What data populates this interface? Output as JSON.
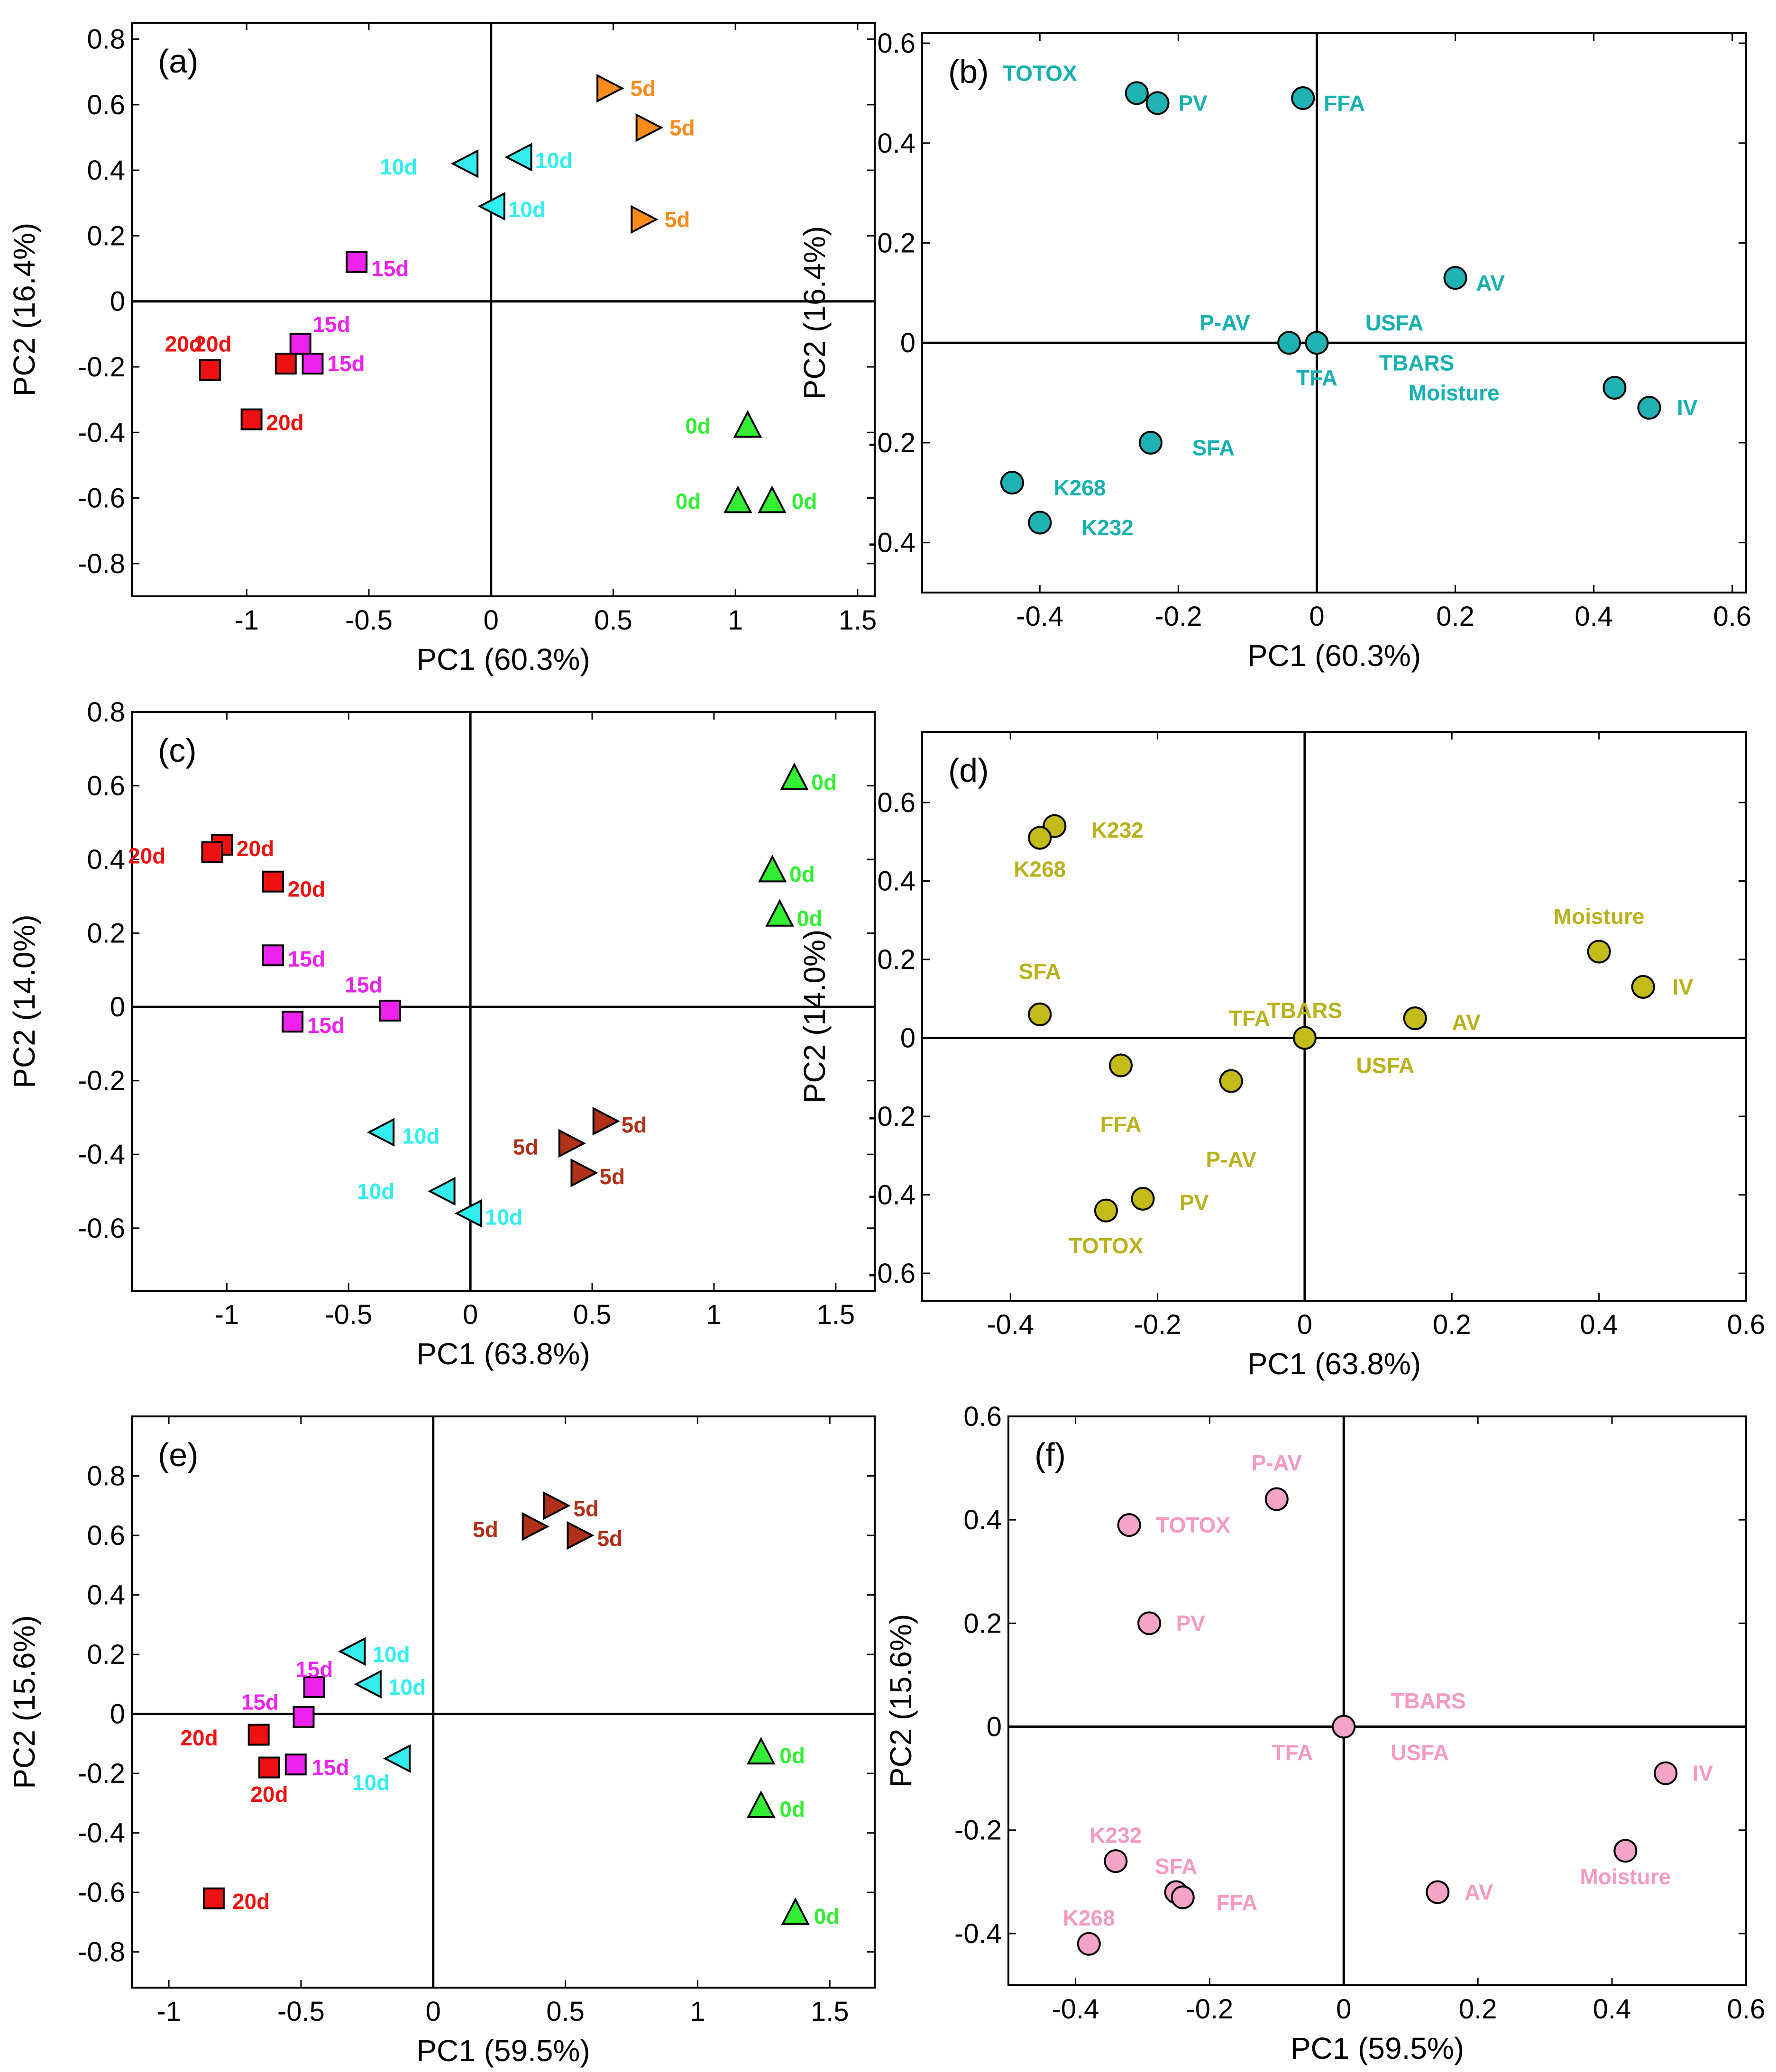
{
  "figure": {
    "title": ""
  },
  "colors": {
    "0d": "#33ee33",
    "5d_a": "#ff8c1a",
    "5d_brown": "#b0301a",
    "10d": "#33eeee",
    "15d": "#ee22ee",
    "20d": "#ee1111",
    "loading_b": "#1fb2b2",
    "loading_b_text": "#16b0b0",
    "loading_d": "#c2bb1a",
    "loading_d_text": "#b8b21e",
    "loading_f": "#f5a3c7",
    "loading_f_text": "#f59ac0"
  },
  "chart_data": [
    {
      "id": "a",
      "panel_label": "(a)",
      "type": "scatter",
      "title": "",
      "xlabel": "PC1 (60.3%)",
      "ylabel": "PC2 (16.4%)",
      "xlim": [
        -1.47,
        1.57
      ],
      "ylim": [
        -0.9,
        0.85
      ],
      "xticks": [
        -1,
        -0.5,
        0,
        0.5,
        1,
        1.5
      ],
      "yticks": [
        -0.8,
        -0.6,
        -0.4,
        -0.2,
        0,
        0.2,
        0.4,
        0.6,
        0.8
      ],
      "points": [
        {
          "x": 0.48,
          "y": 0.65,
          "marker": "tri-right",
          "color": "5d_a",
          "label": "5d",
          "lx": 0.09,
          "ly": 0.0
        },
        {
          "x": 0.64,
          "y": 0.53,
          "marker": "tri-right",
          "color": "5d_a",
          "label": "5d",
          "lx": 0.09,
          "ly": 0.0
        },
        {
          "x": 0.62,
          "y": 0.25,
          "marker": "tri-right",
          "color": "5d_a",
          "label": "5d",
          "lx": 0.09,
          "ly": 0.0
        },
        {
          "x": 0.12,
          "y": 0.44,
          "marker": "tri-left",
          "color": "10d",
          "label": "10d",
          "lx": 0.06,
          "ly": -0.01
        },
        {
          "x": -0.1,
          "y": 0.42,
          "marker": "tri-left",
          "color": "10d",
          "label": "10d",
          "lx": -0.24,
          "ly": -0.01
        },
        {
          "x": 0.01,
          "y": 0.29,
          "marker": "tri-left",
          "color": "10d",
          "label": "10d",
          "lx": 0.06,
          "ly": -0.01
        },
        {
          "x": -0.55,
          "y": 0.12,
          "marker": "square",
          "color": "15d",
          "label": "15d",
          "lx": 0.06,
          "ly": -0.02
        },
        {
          "x": -0.78,
          "y": -0.13,
          "marker": "square",
          "color": "15d",
          "label": "15d",
          "lx": 0.05,
          "ly": 0.06
        },
        {
          "x": -0.73,
          "y": -0.19,
          "marker": "square",
          "color": "15d",
          "label": "15d",
          "lx": 0.06,
          "ly": 0.0
        },
        {
          "x": -0.84,
          "y": -0.19,
          "marker": "square",
          "color": "20d",
          "label": "20d",
          "lx": -0.26,
          "ly": 0.06
        },
        {
          "x": -1.15,
          "y": -0.21,
          "marker": "square",
          "color": "20d",
          "label": "20d",
          "lx": -0.07,
          "ly": 0.08
        },
        {
          "x": -0.98,
          "y": -0.36,
          "marker": "square",
          "color": "20d",
          "label": "20d",
          "lx": 0.06,
          "ly": -0.01
        },
        {
          "x": 1.05,
          "y": -0.38,
          "marker": "tri-up",
          "color": "0d",
          "label": "0d",
          "lx": -0.19,
          "ly": 0.0
        },
        {
          "x": 1.01,
          "y": -0.61,
          "marker": "tri-up",
          "color": "0d",
          "label": "0d",
          "lx": -0.19,
          "ly": 0.0
        },
        {
          "x": 1.15,
          "y": -0.61,
          "marker": "tri-up",
          "color": "0d",
          "label": "0d",
          "lx": 0.08,
          "ly": 0.0
        }
      ]
    },
    {
      "id": "b",
      "panel_label": "(b)",
      "type": "scatter",
      "title": "",
      "xlabel": "PC1 (60.3%)",
      "ylabel": "PC2 (16.4%)",
      "xlim": [
        -0.57,
        0.62
      ],
      "ylim": [
        -0.5,
        0.62
      ],
      "xticks": [
        -0.4,
        -0.2,
        0,
        0.2,
        0.4,
        0.6
      ],
      "yticks": [
        -0.4,
        -0.2,
        0,
        0.2,
        0.4,
        0.6
      ],
      "points": [
        {
          "x": -0.26,
          "y": 0.5,
          "marker": "circle",
          "color": "loading_b",
          "label": "TOTOX",
          "lx": -0.1,
          "ly": 0.04
        },
        {
          "x": -0.23,
          "y": 0.48,
          "marker": "circle",
          "color": "loading_b",
          "label": "PV",
          "lx": 0.03,
          "ly": 0.0
        },
        {
          "x": -0.02,
          "y": 0.49,
          "marker": "circle",
          "color": "loading_b",
          "label": "FFA",
          "lx": 0.03,
          "ly": -0.01
        },
        {
          "x": 0.2,
          "y": 0.13,
          "marker": "circle",
          "color": "loading_b",
          "label": "AV",
          "lx": 0.03,
          "ly": -0.01
        },
        {
          "x": -0.04,
          "y": 0.0,
          "marker": "circle",
          "color": "loading_b",
          "label": "P-AV",
          "lx": -0.07,
          "ly": 0.04
        },
        {
          "x": 0.0,
          "y": 0.0,
          "marker": "circle",
          "color": "loading_b",
          "label": "USFA",
          "lx": 0.07,
          "ly": 0.04
        },
        {
          "x": 0.0,
          "y": 0.0,
          "marker": "none",
          "color": "loading_b",
          "label": "TBARS",
          "lx": 0.09,
          "ly": -0.04
        },
        {
          "x": 0.0,
          "y": 0.0,
          "marker": "none",
          "color": "loading_b",
          "label": "TFA",
          "lx": 0.0,
          "ly": -0.07
        },
        {
          "x": 0.43,
          "y": -0.09,
          "marker": "circle",
          "color": "loading_b",
          "label": "Moisture",
          "lx": -0.18,
          "ly": -0.01
        },
        {
          "x": 0.48,
          "y": -0.13,
          "marker": "circle",
          "color": "loading_b",
          "label": "IV",
          "lx": 0.04,
          "ly": 0.0
        },
        {
          "x": -0.24,
          "y": -0.2,
          "marker": "circle",
          "color": "loading_b",
          "label": "SFA",
          "lx": 0.06,
          "ly": -0.01
        },
        {
          "x": -0.44,
          "y": -0.28,
          "marker": "circle",
          "color": "loading_b",
          "label": "K268",
          "lx": 0.06,
          "ly": -0.01
        },
        {
          "x": -0.4,
          "y": -0.36,
          "marker": "circle",
          "color": "loading_b",
          "label": "K232",
          "lx": 0.06,
          "ly": -0.01
        }
      ]
    },
    {
      "id": "c",
      "panel_label": "(c)",
      "type": "scatter",
      "title": "",
      "xlabel": "PC1 (63.8%)",
      "ylabel": "PC2 (14.0%)",
      "xlim": [
        -1.39,
        1.66
      ],
      "ylim": [
        -0.77,
        0.8
      ],
      "xticks": [
        -1,
        -0.5,
        0,
        0.5,
        1,
        1.5
      ],
      "yticks": [
        -0.6,
        -0.4,
        -0.2,
        0,
        0.2,
        0.4,
        0.6,
        0.8
      ],
      "points": [
        {
          "x": 1.33,
          "y": 0.62,
          "marker": "tri-up",
          "color": "0d",
          "label": "0d",
          "lx": 0.07,
          "ly": -0.01
        },
        {
          "x": 1.24,
          "y": 0.37,
          "marker": "tri-up",
          "color": "0d",
          "label": "0d",
          "lx": 0.07,
          "ly": -0.01
        },
        {
          "x": 1.27,
          "y": 0.25,
          "marker": "tri-up",
          "color": "0d",
          "label": "0d",
          "lx": 0.07,
          "ly": -0.01
        },
        {
          "x": -1.02,
          "y": 0.44,
          "marker": "square",
          "color": "20d",
          "label": "20d",
          "lx": 0.06,
          "ly": -0.01
        },
        {
          "x": -1.06,
          "y": 0.42,
          "marker": "square",
          "color": "20d",
          "label": "20d",
          "lx": -0.23,
          "ly": -0.01
        },
        {
          "x": -0.81,
          "y": 0.34,
          "marker": "square",
          "color": "20d",
          "label": "20d",
          "lx": 0.06,
          "ly": -0.02
        },
        {
          "x": -0.81,
          "y": 0.14,
          "marker": "square",
          "color": "15d",
          "label": "15d",
          "lx": 0.06,
          "ly": -0.01
        },
        {
          "x": -0.33,
          "y": -0.01,
          "marker": "square",
          "color": "15d",
          "label": "15d",
          "lx": -0.07,
          "ly": 0.07
        },
        {
          "x": -0.73,
          "y": -0.04,
          "marker": "square",
          "color": "15d",
          "label": "15d",
          "lx": 0.06,
          "ly": -0.01
        },
        {
          "x": -0.36,
          "y": -0.34,
          "marker": "tri-left",
          "color": "10d",
          "label": "10d",
          "lx": 0.08,
          "ly": -0.01
        },
        {
          "x": -0.11,
          "y": -0.5,
          "marker": "tri-left",
          "color": "10d",
          "label": "10d",
          "lx": -0.24,
          "ly": 0.0
        },
        {
          "x": 0.0,
          "y": -0.56,
          "marker": "tri-left",
          "color": "10d",
          "label": "10d",
          "lx": 0.06,
          "ly": -0.01
        },
        {
          "x": 0.55,
          "y": -0.31,
          "marker": "tri-right",
          "color": "5d_brown",
          "label": "5d",
          "lx": 0.07,
          "ly": -0.01
        },
        {
          "x": 0.41,
          "y": -0.37,
          "marker": "tri-right",
          "color": "5d_brown",
          "label": "5d",
          "lx": -0.17,
          "ly": -0.01
        },
        {
          "x": 0.46,
          "y": -0.45,
          "marker": "tri-right",
          "color": "5d_brown",
          "label": "5d",
          "lx": 0.07,
          "ly": -0.01
        }
      ]
    },
    {
      "id": "d",
      "panel_label": "(d)",
      "type": "scatter",
      "title": "",
      "xlabel": "PC1 (63.8%)",
      "ylabel": "PC2 (14.0%)",
      "xlim": [
        -0.52,
        0.6
      ],
      "ylim": [
        -0.67,
        0.78
      ],
      "xticks": [
        -0.4,
        -0.2,
        0,
        0.2,
        0.4,
        0.6
      ],
      "yticks": [
        -0.6,
        -0.4,
        -0.2,
        0,
        0.2,
        0.4,
        0.6
      ],
      "points": [
        {
          "x": -0.34,
          "y": 0.54,
          "marker": "circle",
          "color": "loading_d",
          "label": "K232",
          "lx": 0.05,
          "ly": -0.01
        },
        {
          "x": -0.36,
          "y": 0.51,
          "marker": "circle",
          "color": "loading_d",
          "label": "K268",
          "lx": 0.0,
          "ly": -0.08
        },
        {
          "x": 0.4,
          "y": 0.22,
          "marker": "circle",
          "color": "loading_d",
          "label": "Moisture",
          "lx": 0.0,
          "ly": 0.09
        },
        {
          "x": 0.46,
          "y": 0.13,
          "marker": "circle",
          "color": "loading_d",
          "label": "IV",
          "lx": 0.04,
          "ly": 0.0
        },
        {
          "x": -0.36,
          "y": 0.06,
          "marker": "circle",
          "color": "loading_d",
          "label": "SFA",
          "lx": 0.0,
          "ly": 0.11
        },
        {
          "x": 0.15,
          "y": 0.05,
          "marker": "circle",
          "color": "loading_d",
          "label": "AV",
          "lx": 0.05,
          "ly": -0.01
        },
        {
          "x": 0.0,
          "y": 0.0,
          "marker": "circle",
          "color": "loading_d",
          "label": "TBARS",
          "lx": 0.0,
          "ly": 0.07
        },
        {
          "x": 0.0,
          "y": 0.0,
          "marker": "none",
          "color": "loading_d",
          "label": "TFA",
          "lx": -0.06,
          "ly": 0.05
        },
        {
          "x": 0.0,
          "y": 0.0,
          "marker": "none",
          "color": "loading_d",
          "label": "USFA",
          "lx": 0.07,
          "ly": -0.07
        },
        {
          "x": -0.25,
          "y": -0.07,
          "marker": "circle",
          "color": "loading_d",
          "label": "FFA",
          "lx": 0.0,
          "ly": -0.15
        },
        {
          "x": -0.1,
          "y": -0.11,
          "marker": "circle",
          "color": "loading_d",
          "label": "P-AV",
          "lx": 0.0,
          "ly": -0.2
        },
        {
          "x": -0.22,
          "y": -0.41,
          "marker": "circle",
          "color": "loading_d",
          "label": "PV",
          "lx": 0.05,
          "ly": -0.01
        },
        {
          "x": -0.27,
          "y": -0.44,
          "marker": "circle",
          "color": "loading_d",
          "label": "TOTOX",
          "lx": 0.0,
          "ly": -0.09
        }
      ]
    },
    {
      "id": "e",
      "panel_label": "(e)",
      "type": "scatter",
      "title": "",
      "xlabel": "PC1 (59.5%)",
      "ylabel": "PC2 (15.6%)",
      "xlim": [
        -1.14,
        1.67
      ],
      "ylim": [
        -0.92,
        1.0
      ],
      "xticks": [
        -1,
        -0.5,
        0,
        0.5,
        1,
        1.5
      ],
      "yticks": [
        -0.8,
        -0.6,
        -0.4,
        -0.2,
        0,
        0.2,
        0.4,
        0.6,
        0.8
      ],
      "points": [
        {
          "x": 0.46,
          "y": 0.7,
          "marker": "tri-right",
          "color": "5d_brown",
          "label": "5d",
          "lx": 0.07,
          "ly": -0.01
        },
        {
          "x": 0.38,
          "y": 0.63,
          "marker": "tri-right",
          "color": "5d_brown",
          "label": "5d",
          "lx": -0.17,
          "ly": -0.01
        },
        {
          "x": 0.55,
          "y": 0.6,
          "marker": "tri-right",
          "color": "5d_brown",
          "label": "5d",
          "lx": 0.07,
          "ly": -0.01
        },
        {
          "x": -0.3,
          "y": 0.21,
          "marker": "tri-left",
          "color": "10d",
          "label": "10d",
          "lx": 0.07,
          "ly": -0.01
        },
        {
          "x": -0.24,
          "y": 0.1,
          "marker": "tri-left",
          "color": "10d",
          "label": "10d",
          "lx": 0.07,
          "ly": -0.01
        },
        {
          "x": -0.13,
          "y": -0.15,
          "marker": "tri-left",
          "color": "10d",
          "label": "10d",
          "lx": -0.07,
          "ly": -0.08
        },
        {
          "x": -0.45,
          "y": 0.09,
          "marker": "square",
          "color": "15d",
          "label": "15d",
          "lx": 0.0,
          "ly": 0.06
        },
        {
          "x": -0.49,
          "y": -0.01,
          "marker": "square",
          "color": "15d",
          "label": "15d",
          "lx": -0.13,
          "ly": 0.05
        },
        {
          "x": -0.52,
          "y": -0.17,
          "marker": "square",
          "color": "15d",
          "label": "15d",
          "lx": 0.06,
          "ly": -0.01
        },
        {
          "x": -0.66,
          "y": -0.07,
          "marker": "square",
          "color": "20d",
          "label": "20d",
          "lx": -0.19,
          "ly": -0.01
        },
        {
          "x": -0.62,
          "y": -0.18,
          "marker": "square",
          "color": "20d",
          "label": "20d",
          "lx": 0.0,
          "ly": -0.09
        },
        {
          "x": -0.83,
          "y": -0.62,
          "marker": "square",
          "color": "20d",
          "label": "20d",
          "lx": 0.07,
          "ly": -0.01
        },
        {
          "x": 1.24,
          "y": -0.13,
          "marker": "tri-up",
          "color": "0d",
          "label": "0d",
          "lx": 0.07,
          "ly": -0.01
        },
        {
          "x": 1.24,
          "y": -0.31,
          "marker": "tri-up",
          "color": "0d",
          "label": "0d",
          "lx": 0.07,
          "ly": -0.01
        },
        {
          "x": 1.37,
          "y": -0.67,
          "marker": "tri-up",
          "color": "0d",
          "label": "0d",
          "lx": 0.07,
          "ly": -0.01
        }
      ]
    },
    {
      "id": "f",
      "panel_label": "(f)",
      "type": "scatter",
      "title": "",
      "xlabel": "PC1 (59.5%)",
      "ylabel": "PC2 (15.6%)",
      "xlim": [
        -0.5,
        0.6
      ],
      "ylim": [
        -0.5,
        0.6
      ],
      "xticks": [
        -0.4,
        -0.2,
        0,
        0.2,
        0.4,
        0.6
      ],
      "yticks": [
        -0.4,
        -0.2,
        0,
        0.2,
        0.4,
        0.6
      ],
      "points": [
        {
          "x": -0.1,
          "y": 0.44,
          "marker": "circle",
          "color": "loading_f",
          "label": "P-AV",
          "lx": 0.0,
          "ly": 0.07
        },
        {
          "x": -0.32,
          "y": 0.39,
          "marker": "circle",
          "color": "loading_f",
          "label": "TOTOX",
          "lx": 0.04,
          "ly": 0.0
        },
        {
          "x": -0.29,
          "y": 0.2,
          "marker": "circle",
          "color": "loading_f",
          "label": "PV",
          "lx": 0.04,
          "ly": 0.0
        },
        {
          "x": 0.0,
          "y": 0.0,
          "marker": "circle",
          "color": "loading_f",
          "label": "TBARS",
          "lx": 0.07,
          "ly": 0.05
        },
        {
          "x": 0.0,
          "y": 0.0,
          "marker": "none",
          "color": "loading_f",
          "label": "TFA",
          "lx": -0.06,
          "ly": -0.05
        },
        {
          "x": 0.0,
          "y": 0.0,
          "marker": "none",
          "color": "loading_f",
          "label": "USFA",
          "lx": 0.07,
          "ly": -0.05
        },
        {
          "x": 0.48,
          "y": -0.09,
          "marker": "circle",
          "color": "loading_f",
          "label": "IV",
          "lx": 0.04,
          "ly": 0.0
        },
        {
          "x": 0.42,
          "y": -0.24,
          "marker": "circle",
          "color": "loading_f",
          "label": "Moisture",
          "lx": 0.0,
          "ly": -0.05
        },
        {
          "x": 0.14,
          "y": -0.32,
          "marker": "circle",
          "color": "loading_f",
          "label": "AV",
          "lx": 0.04,
          "ly": 0.0
        },
        {
          "x": -0.34,
          "y": -0.26,
          "marker": "circle",
          "color": "loading_f",
          "label": "K232",
          "lx": 0.0,
          "ly": 0.05
        },
        {
          "x": -0.25,
          "y": -0.32,
          "marker": "circle",
          "color": "loading_f",
          "label": "SFA",
          "lx": 0.0,
          "ly": 0.05
        },
        {
          "x": -0.24,
          "y": -0.33,
          "marker": "circle",
          "color": "loading_f",
          "label": "FFA",
          "lx": 0.05,
          "ly": -0.01
        },
        {
          "x": -0.38,
          "y": -0.42,
          "marker": "circle",
          "color": "loading_f",
          "label": "K268",
          "lx": 0.0,
          "ly": 0.05
        }
      ]
    }
  ]
}
